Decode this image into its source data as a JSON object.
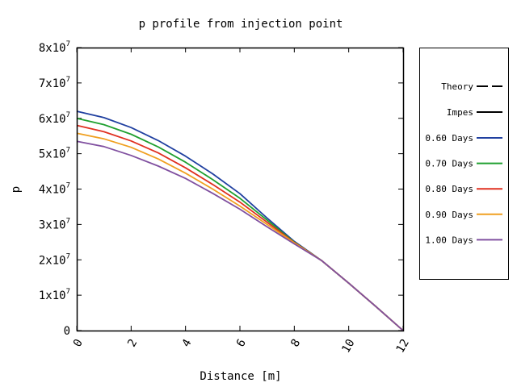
{
  "chart_data": {
    "type": "line",
    "title": "p profile from injection point",
    "xlabel": "Distance [m]",
    "ylabel": "p",
    "xlim": [
      0,
      12
    ],
    "ylim": [
      0,
      80000000
    ],
    "x_ticks": [
      "0",
      "2",
      "4",
      "6",
      "8",
      "10",
      "12"
    ],
    "y_ticks": [
      {
        "base": "0",
        "exp": ""
      },
      {
        "base": "1x10",
        "exp": "7"
      },
      {
        "base": "2x10",
        "exp": "7"
      },
      {
        "base": "3x10",
        "exp": "7"
      },
      {
        "base": "4x10",
        "exp": "7"
      },
      {
        "base": "5x10",
        "exp": "7"
      },
      {
        "base": "6x10",
        "exp": "7"
      },
      {
        "base": "7x10",
        "exp": "7"
      },
      {
        "base": "8x10",
        "exp": "7"
      }
    ],
    "legend_position": "outside-right",
    "legend": [
      {
        "name": "Theory",
        "style": "dashed",
        "color": "#000000"
      },
      {
        "name": "Impes",
        "style": "solid",
        "color": "#000000"
      }
    ],
    "series": [
      {
        "name": "0.60 Days",
        "color": "#2040a0",
        "x": [
          0,
          1,
          2,
          3,
          4,
          5,
          6,
          7,
          8,
          9,
          10,
          11,
          12
        ],
        "values": [
          62000000,
          60200000,
          57400000,
          53700000,
          49300000,
          44300000,
          38700000,
          31800000,
          25200000,
          19800000,
          13400000,
          6800000,
          0
        ]
      },
      {
        "name": "0.70 Days",
        "color": "#20a030",
        "x": [
          0,
          1,
          2,
          3,
          4,
          5,
          6,
          7,
          8,
          9,
          10,
          11,
          12
        ],
        "values": [
          60000000,
          58200000,
          55500000,
          51900000,
          47600000,
          42700000,
          37400000,
          31200000,
          25000000,
          19800000,
          13400000,
          6800000,
          0
        ]
      },
      {
        "name": "0.80 Days",
        "color": "#e03020",
        "x": [
          0,
          1,
          2,
          3,
          4,
          5,
          6,
          7,
          8,
          9,
          10,
          11,
          12
        ],
        "values": [
          58000000,
          56200000,
          53600000,
          50200000,
          46000000,
          41300000,
          36300000,
          30600000,
          24900000,
          19800000,
          13400000,
          6800000,
          0
        ]
      },
      {
        "name": "0.90 Days",
        "color": "#f0a020",
        "x": [
          0,
          1,
          2,
          3,
          4,
          5,
          6,
          7,
          8,
          9,
          10,
          11,
          12
        ],
        "values": [
          55800000,
          54200000,
          51800000,
          48500000,
          44500000,
          40000000,
          35200000,
          30000000,
          24800000,
          19800000,
          13400000,
          6800000,
          0
        ]
      },
      {
        "name": "1.00 Days",
        "color": "#8050a0",
        "x": [
          0,
          1,
          2,
          3,
          4,
          5,
          6,
          7,
          8,
          9,
          10,
          11,
          12
        ],
        "values": [
          53500000,
          52000000,
          49500000,
          46500000,
          43000000,
          38800000,
          34300000,
          29300000,
          24500000,
          19800000,
          13400000,
          6800000,
          0
        ]
      }
    ]
  }
}
